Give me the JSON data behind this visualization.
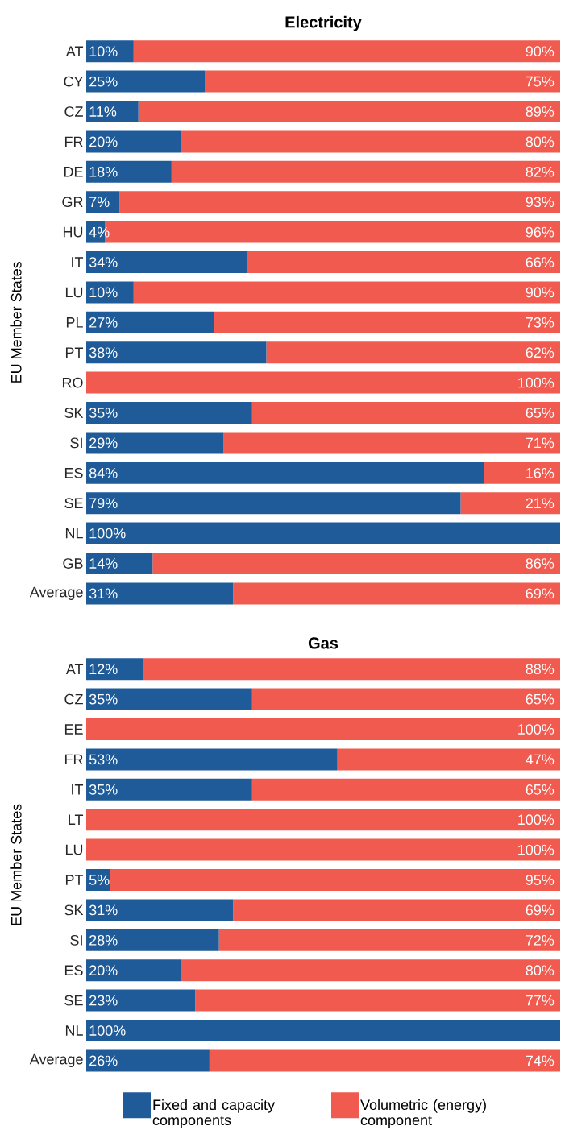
{
  "chart_data": [
    {
      "type": "bar",
      "title": "Electricity",
      "ylabel": "EU Member States",
      "orientation": "horizontal",
      "stacked": true,
      "tick_labels": "y",
      "legend": false,
      "categories": [
        "AT",
        "CY",
        "CZ",
        "FR",
        "DE",
        "GR",
        "HU",
        "IT",
        "LU",
        "PL",
        "PT",
        "RO",
        "SK",
        "SI",
        "ES",
        "SE",
        "NL",
        "GB",
        "Average"
      ],
      "series": [
        {
          "color": "#1f5b99",
          "values": [
            10,
            25,
            11,
            20,
            18,
            7,
            4,
            34,
            10,
            27,
            38,
            0,
            35,
            29,
            84,
            79,
            100,
            14,
            31
          ],
          "value_labels": [
            "10%",
            "25%",
            "11%",
            "20%",
            "18%",
            "7%",
            "4%",
            "34%",
            "10%",
            "27%",
            "38%",
            null,
            "35%",
            "29%",
            "84%",
            "79%",
            "100%",
            "14%",
            "31%"
          ]
        },
        {
          "color": "#f05a4f",
          "values": [
            90,
            75,
            89,
            80,
            82,
            93,
            96,
            66,
            90,
            73,
            62,
            100,
            65,
            71,
            16,
            21,
            0,
            86,
            69
          ],
          "value_labels": [
            "90%",
            "75%",
            "89%",
            "80%",
            "82%",
            "93%",
            "96%",
            "66%",
            "90%",
            "73%",
            "62%",
            "100%",
            "65%",
            "71%",
            "16%",
            "21%",
            null,
            "86%",
            "69%"
          ]
        }
      ]
    },
    {
      "type": "bar",
      "title": "Gas",
      "ylabel": "EU Member States",
      "orientation": "horizontal",
      "stacked": true,
      "tick_labels": "y",
      "legend": "bottom",
      "categories": [
        "AT",
        "CZ",
        "EE",
        "FR",
        "IT",
        "LT",
        "LU",
        "PT",
        "SK",
        "SI",
        "ES",
        "SE",
        "NL",
        "Average"
      ],
      "series": [
        {
          "name": "Fixed and capacity components",
          "color": "#1f5b99",
          "values": [
            12,
            35,
            0,
            53,
            35,
            0,
            0,
            5,
            31,
            28,
            20,
            23,
            100,
            26
          ],
          "value_labels": [
            "12%",
            "35%",
            null,
            "53%",
            "35%",
            null,
            null,
            "5%",
            "31%",
            "28%",
            "20%",
            "23%",
            "100%",
            "26%"
          ]
        },
        {
          "name": "Volumetric (energy) component",
          "color": "#f05a4f",
          "values": [
            88,
            65,
            100,
            47,
            65,
            100,
            100,
            95,
            69,
            72,
            80,
            77,
            0,
            74
          ],
          "value_labels": [
            "88%",
            "65%",
            "100%",
            "47%",
            "65%",
            "100%",
            "100%",
            "95%",
            "69%",
            "72%",
            "80%",
            "77%",
            null,
            "74%"
          ]
        }
      ]
    }
  ]
}
